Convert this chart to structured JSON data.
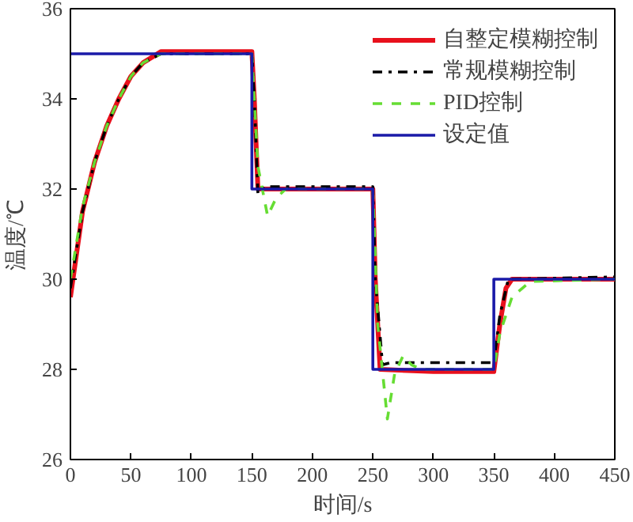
{
  "chart_data": {
    "type": "line",
    "xlabel": "时间/s",
    "ylabel": "温度/℃",
    "xlim": [
      0,
      450
    ],
    "ylim": [
      26,
      36
    ],
    "xticks": [
      0,
      50,
      100,
      150,
      200,
      250,
      300,
      350,
      400,
      450
    ],
    "yticks": [
      26,
      28,
      30,
      32,
      34,
      36
    ],
    "grid": false,
    "legend": "top right",
    "marker": "none",
    "series": [
      {
        "name": "自整定模糊控制",
        "color": "#e8101c",
        "line_style": "solid",
        "x": [
          0,
          10,
          20,
          30,
          40,
          50,
          60,
          75,
          150,
          152,
          155,
          250,
          252,
          256,
          300,
          350,
          355,
          360,
          365,
          450
        ],
        "values": [
          29.6,
          31.5,
          32.6,
          33.4,
          34.0,
          34.5,
          34.8,
          35.05,
          35.05,
          34.0,
          32.0,
          32.0,
          30.0,
          28.0,
          27.95,
          27.95,
          29.0,
          29.8,
          30.0,
          30.0
        ]
      },
      {
        "name": "常规模糊控制",
        "color": "#000000",
        "line_style": "dashdot",
        "x": [
          0,
          10,
          20,
          30,
          40,
          50,
          60,
          75,
          150,
          152,
          155,
          160,
          250,
          252,
          258,
          265,
          350,
          355,
          362,
          450
        ],
        "values": [
          29.8,
          31.5,
          32.6,
          33.4,
          34.0,
          34.5,
          34.8,
          35.0,
          35.0,
          34.0,
          31.9,
          32.05,
          32.05,
          30.0,
          28.1,
          28.15,
          28.15,
          29.2,
          30.0,
          30.05
        ]
      },
      {
        "name": "PID控制",
        "color": "#66dd33",
        "line_style": "dashed",
        "x": [
          0,
          10,
          20,
          30,
          40,
          50,
          60,
          75,
          150,
          155,
          163,
          170,
          178,
          250,
          254,
          262,
          268,
          275,
          282,
          290,
          350,
          355,
          365,
          380,
          450
        ],
        "values": [
          30.0,
          31.6,
          32.6,
          33.4,
          34.0,
          34.5,
          34.8,
          35.0,
          35.0,
          32.5,
          31.4,
          31.8,
          32.0,
          32.0,
          29.0,
          26.9,
          27.9,
          28.3,
          28.1,
          28.0,
          28.0,
          28.8,
          29.6,
          29.95,
          30.0
        ]
      },
      {
        "name": "设定值",
        "color": "#1a1aa8",
        "line_style": "solid",
        "x": [
          0,
          150,
          150,
          250,
          250,
          350,
          350,
          450
        ],
        "values": [
          35,
          35,
          32,
          32,
          28,
          28,
          30,
          30
        ]
      }
    ]
  }
}
